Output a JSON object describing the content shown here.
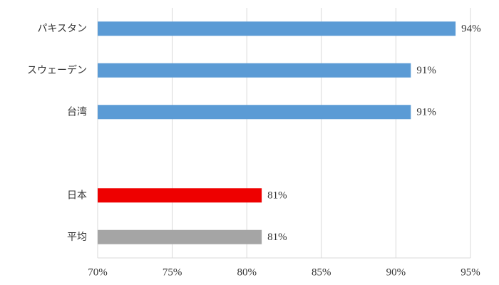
{
  "chart_data": {
    "type": "bar",
    "orientation": "horizontal",
    "categories": [
      "パキスタン",
      "スウェーデン",
      "台湾",
      null,
      "日本",
      "平均"
    ],
    "values": [
      94,
      91,
      91,
      null,
      81,
      81
    ],
    "value_labels": [
      "94%",
      "91%",
      "91%",
      null,
      "81%",
      "81%"
    ],
    "colors": [
      "#5b9bd5",
      "#5b9bd5",
      "#5b9bd5",
      null,
      "#ee0000",
      "#a5a5a5"
    ],
    "xlim": [
      70,
      95
    ],
    "xticks": [
      {
        "value": 70,
        "label": "70%"
      },
      {
        "value": 75,
        "label": "75%"
      },
      {
        "value": 80,
        "label": "80%"
      },
      {
        "value": 85,
        "label": "85%"
      },
      {
        "value": 90,
        "label": "90%"
      },
      {
        "value": 95,
        "label": "95%"
      }
    ],
    "grid": true
  }
}
